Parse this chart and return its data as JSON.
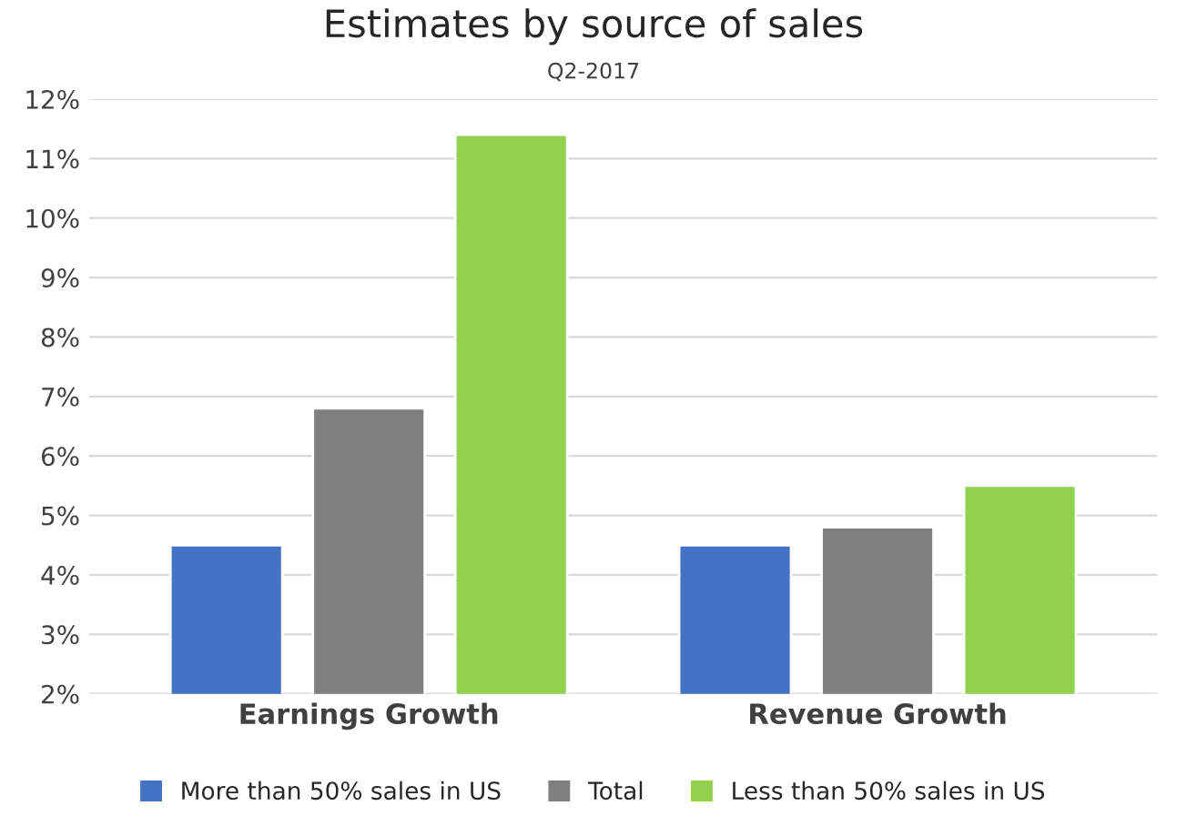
{
  "chart_data": {
    "type": "bar",
    "title": "Estimates by source of sales",
    "subtitle": "Q2-2017",
    "categories": [
      "Earnings Growth",
      "Revenue Growth"
    ],
    "series": [
      {
        "name": "More than 50% sales in US",
        "color": "#4472c4",
        "values": [
          4.5,
          4.5
        ]
      },
      {
        "name": "Total",
        "color": "#7f7f7f",
        "values": [
          6.8,
          4.8
        ]
      },
      {
        "name": "Less than 50% sales in US",
        "color": "#92d050",
        "values": [
          11.4,
          5.5
        ]
      }
    ],
    "ylim": [
      2,
      12
    ],
    "yticks": [
      {
        "value": 2,
        "label": "2%"
      },
      {
        "value": 3,
        "label": "3%"
      },
      {
        "value": 4,
        "label": "4%"
      },
      {
        "value": 5,
        "label": "5%"
      },
      {
        "value": 6,
        "label": "6%"
      },
      {
        "value": 7,
        "label": "7%"
      },
      {
        "value": 8,
        "label": "8%"
      },
      {
        "value": 9,
        "label": "9%"
      },
      {
        "value": 10,
        "label": "10%"
      },
      {
        "value": 11,
        "label": "11%"
      },
      {
        "value": 12,
        "label": "12%"
      }
    ],
    "grid": "y",
    "legend": "bottom"
  }
}
